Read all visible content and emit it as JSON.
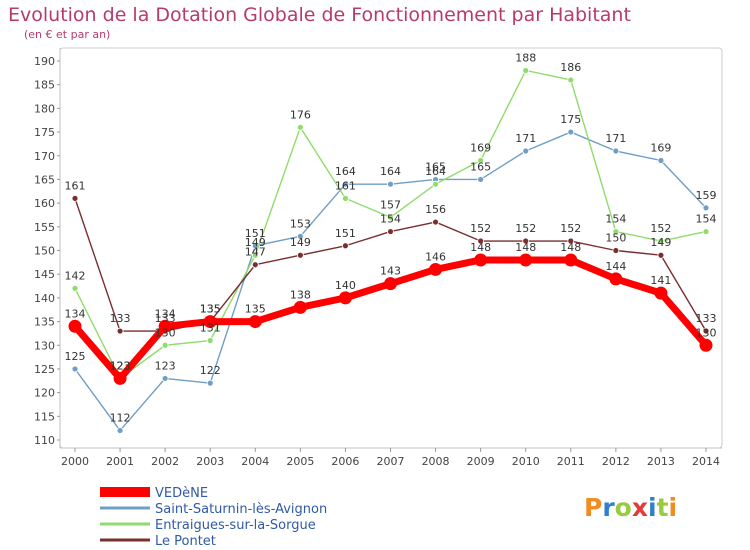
{
  "chart_data": {
    "type": "line",
    "title": "Evolution de la Dotation Globale de Fonctionnement par Habitant",
    "subtitle": "(en € et par an)",
    "xlabel": "",
    "ylabel": "",
    "categories": [
      "2000",
      "2001",
      "2002",
      "2003",
      "2004",
      "2005",
      "2006",
      "2007",
      "2008",
      "2009",
      "2010",
      "2011",
      "2012",
      "2013",
      "2014"
    ],
    "ylim": [
      110,
      190
    ],
    "yticks": [
      110,
      115,
      120,
      125,
      130,
      135,
      140,
      145,
      150,
      155,
      160,
      165,
      170,
      175,
      180,
      185,
      190
    ],
    "grid": false,
    "legend_position": "bottom-left",
    "series": [
      {
        "name": "VEDèNE",
        "color": "#ff0000",
        "values": [
          134,
          123,
          134,
          135,
          135,
          138,
          140,
          143,
          146,
          148,
          148,
          148,
          144,
          141,
          130
        ]
      },
      {
        "name": "Saint-Saturnin-lès-Avignon",
        "color": "#6f9ec8",
        "values": [
          125,
          112,
          123,
          122,
          151,
          153,
          164,
          164,
          165,
          165,
          171,
          175,
          171,
          169,
          159
        ]
      },
      {
        "name": "Entraigues-sur-la-Sorgue",
        "color": "#8fdc6c",
        "values": [
          142,
          123,
          130,
          131,
          149,
          176,
          161,
          157,
          164,
          169,
          188,
          186,
          154,
          152,
          154
        ]
      },
      {
        "name": "Le Pontet",
        "color": "#7a2f2f",
        "values": [
          161,
          133,
          133,
          135,
          147,
          149,
          151,
          154,
          156,
          152,
          152,
          152,
          150,
          149,
          133
        ]
      }
    ]
  },
  "branding": {
    "logo_text": "Proxiti"
  }
}
